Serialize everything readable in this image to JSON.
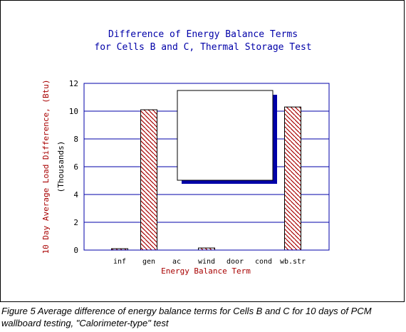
{
  "chart_data": {
    "type": "bar",
    "title": [
      "Difference of Energy Balance Terms",
      "for Cells B and C,  Thermal Storage Test"
    ],
    "xlabel": "Energy Balance Term",
    "ylabel": "10 Day Average Load Difference,  (Btu)",
    "yunit": "(Thousands)",
    "categories": [
      "inf",
      "gen",
      "ac",
      "wind",
      "door",
      "cond",
      "wb.str"
    ],
    "values": [
      0.1,
      10.1,
      0,
      0.15,
      0,
      0,
      10.3
    ],
    "ylim": [
      0,
      12
    ],
    "yticks": [
      "0",
      "2",
      "4",
      "6",
      "8",
      "10",
      "12"
    ],
    "ytick_values": [
      0,
      2,
      4,
      6,
      8,
      10,
      12
    ],
    "grid": true,
    "legend": "empty box, center-right",
    "colors": {
      "title": "#0000a8",
      "axis_label": "#a80000",
      "grid": "#0000a8",
      "bar_hatch": "#a80000",
      "legend_shadow": "#0000a8"
    }
  },
  "caption": "Figure 5   Average difference of energy balance terms for Cells B and C for 10 days of PCM wallboard testing, \"Calorimeter-type\" test"
}
